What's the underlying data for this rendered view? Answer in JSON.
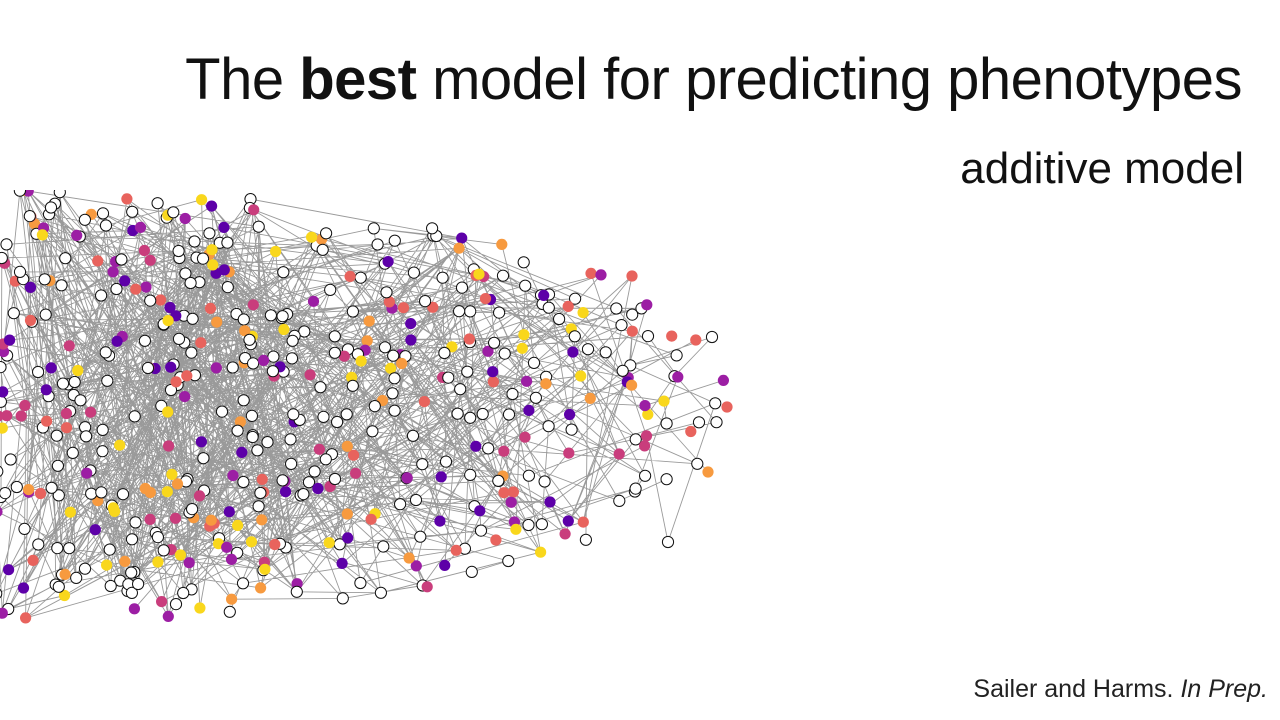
{
  "title": {
    "pre": "The ",
    "emphasis": "best",
    "post": " model for predicting phenotypes"
  },
  "subtitle": "additive model",
  "citation": {
    "authors": "Sailer and Harms. ",
    "status": "In Prep."
  },
  "network": {
    "node_palette": [
      "#ffffff",
      "#f9d71c",
      "#f79a3f",
      "#e8635d",
      "#c93d7c",
      "#9c1ea4",
      "#5d00a8"
    ],
    "edge_color": "#888888",
    "node_stroke": "#111111"
  }
}
